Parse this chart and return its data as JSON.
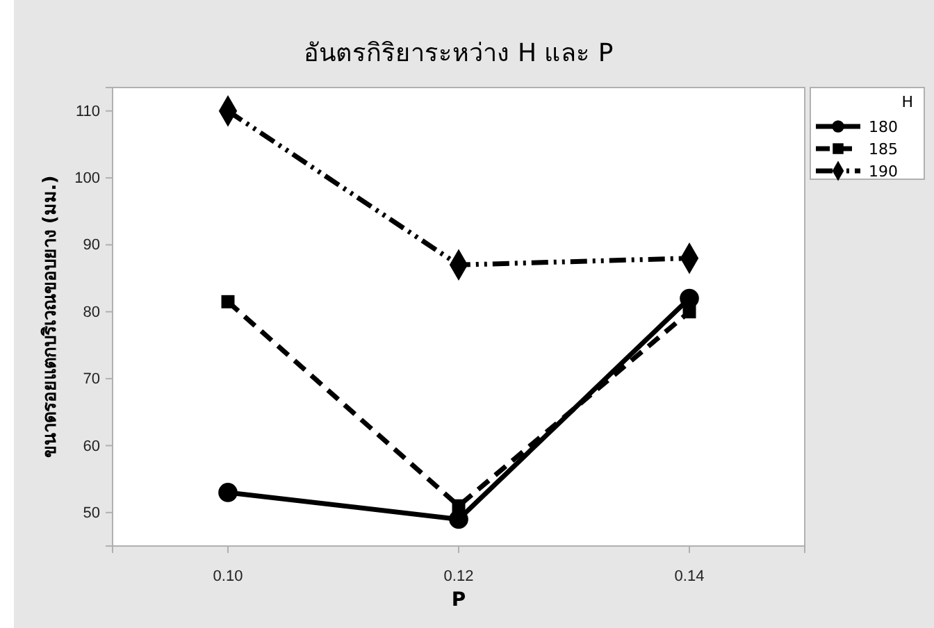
{
  "chart_data": {
    "type": "line",
    "title": "อันตรกิริยาระหว่าง H และ P",
    "xlabel": "P",
    "ylabel": "ขนาดรอยแตกบริเวณขอบยาง (มม.)",
    "legend_title": "H",
    "x": [
      0.1,
      0.12,
      0.14
    ],
    "xlim": [
      0.09,
      0.15
    ],
    "xticks": [
      {
        "value": 0.1,
        "label": "0.10"
      },
      {
        "value": 0.12,
        "label": "0.12"
      },
      {
        "value": 0.14,
        "label": "0.14"
      }
    ],
    "ylim": [
      45,
      113.5
    ],
    "yticks": [
      50,
      60,
      70,
      80,
      90,
      100,
      110
    ],
    "grid": false,
    "legend": "right",
    "series": [
      {
        "name": "180",
        "color": "#000000",
        "marker": "circle",
        "line_style": "solid",
        "values": [
          53,
          49,
          82
        ]
      },
      {
        "name": "185",
        "color": "#000000",
        "marker": "square",
        "line_style": "dashed",
        "values": [
          81.5,
          51,
          80
        ]
      },
      {
        "name": "190",
        "color": "#000000",
        "marker": "diamond",
        "line_style": "dashdotdot",
        "values": [
          110,
          87,
          88
        ]
      }
    ]
  }
}
